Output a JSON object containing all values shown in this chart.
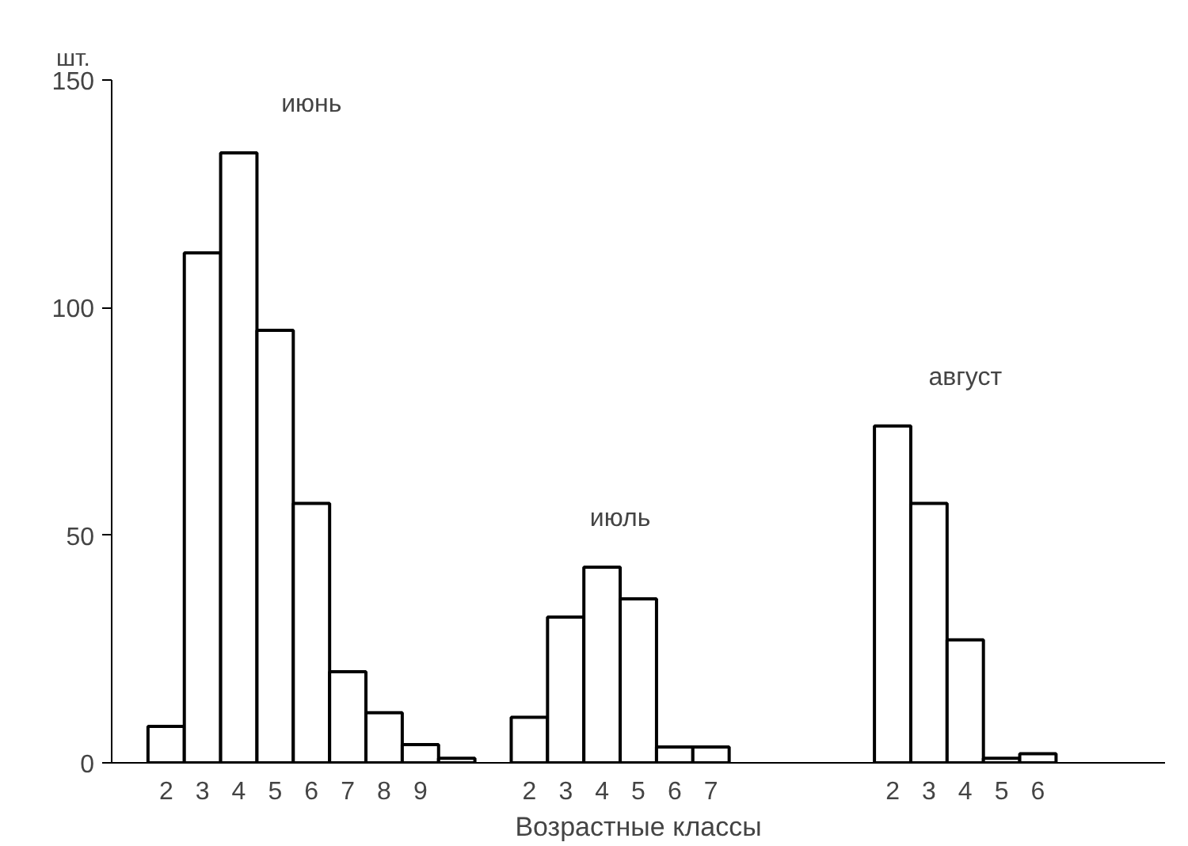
{
  "chart_data": {
    "type": "bar",
    "xlabel": "Возрастные классы",
    "ylabel": "шт.",
    "categories": [
      null,
      "2",
      "3",
      "4",
      "5",
      "6",
      "7",
      "8",
      "9",
      null,
      null,
      "2",
      "3",
      "4",
      "5",
      "6",
      "7",
      null,
      null,
      null,
      null,
      "2",
      "3",
      "4",
      "5",
      "6",
      null,
      null,
      null
    ],
    "series": [
      {
        "name": "июнь",
        "color": "#ffffff",
        "values": [
          null,
          8,
          112,
          134,
          95,
          57,
          20,
          11,
          4,
          1,
          null,
          null,
          null,
          null,
          null,
          null,
          null,
          null,
          null,
          null,
          null,
          null,
          null,
          null,
          null,
          null,
          null,
          null,
          null
        ]
      },
      {
        "name": "июль",
        "color": "#ffffff",
        "values": [
          null,
          null,
          null,
          null,
          null,
          null,
          null,
          null,
          null,
          null,
          null,
          10,
          32,
          43,
          36,
          3.5,
          3.5,
          null,
          null,
          null,
          null,
          null,
          null,
          null,
          null,
          null,
          null,
          null,
          null
        ]
      },
      {
        "name": "август",
        "color": "#ffffff",
        "values": [
          null,
          null,
          null,
          null,
          null,
          null,
          null,
          null,
          null,
          null,
          null,
          null,
          null,
          null,
          null,
          null,
          null,
          null,
          null,
          null,
          null,
          74,
          57,
          27,
          1,
          2,
          null,
          null,
          null
        ]
      }
    ],
    "ylim": [
      0,
      150
    ],
    "yticks": [
      0,
      50,
      100,
      150
    ],
    "grid": false
  }
}
